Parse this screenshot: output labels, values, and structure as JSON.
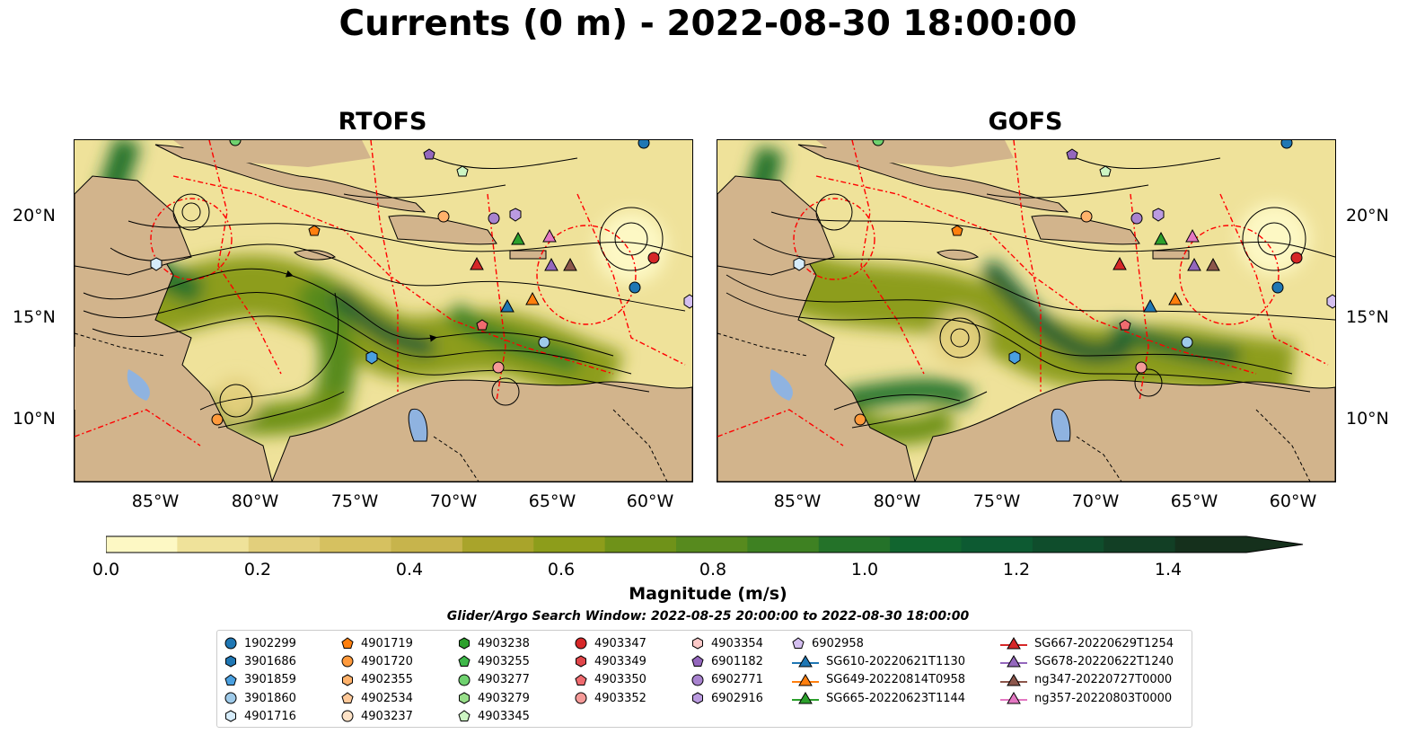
{
  "figure": {
    "title": "Currents (0 m) - 2022-08-30 18:00:00",
    "panels": [
      {
        "title": "RTOFS"
      },
      {
        "title": "GOFS"
      }
    ]
  },
  "axes": {
    "lat_labels": [
      "20°N",
      "15°N",
      "10°N"
    ],
    "lon_labels": [
      "85°W",
      "80°W",
      "75°W",
      "70°W",
      "65°W",
      "60°W"
    ]
  },
  "colorbar": {
    "label": "Magnitude (m/s)",
    "ticks": [
      "0.0",
      "0.2",
      "0.4",
      "0.6",
      "0.8",
      "1.0",
      "1.2",
      "1.4"
    ],
    "colors": [
      "#fdf8c4",
      "#efe29a",
      "#e2cf7c",
      "#d6c160",
      "#c7b44c",
      "#a9a42b",
      "#8d9d1b",
      "#6f9219",
      "#578a1e",
      "#3e8122",
      "#247229",
      "#11652f",
      "#0d5a32",
      "#0f4d2c",
      "#123f25",
      "#15301c"
    ]
  },
  "search_window": "Glider/Argo Search Window: 2022-08-25 20:00:00 to 2022-08-30 18:00:00",
  "legend": {
    "columns": [
      [
        {
          "label": "1902299",
          "marker": "circle",
          "color": "#1f77b4"
        },
        {
          "label": "3901686",
          "marker": "hexagon",
          "color": "#1f77b4"
        },
        {
          "label": "3901859",
          "marker": "pentagon",
          "color": "#4aa0e0"
        },
        {
          "label": "3901860",
          "marker": "circle",
          "color": "#9ecae9"
        },
        {
          "label": "4901716",
          "marker": "hexagon",
          "color": "#d6ecfb"
        }
      ],
      [
        {
          "label": "4901719",
          "marker": "pentagon",
          "color": "#ff7f0e"
        },
        {
          "label": "4901720",
          "marker": "circle",
          "color": "#ff9a3c"
        },
        {
          "label": "4902355",
          "marker": "hexagon",
          "color": "#ffb26b"
        },
        {
          "label": "4902534",
          "marker": "pentagon",
          "color": "#ffc999"
        },
        {
          "label": "4903237",
          "marker": "circle",
          "color": "#ffe3c7"
        }
      ],
      [
        {
          "label": "4903238",
          "marker": "hexagon",
          "color": "#2ca02c"
        },
        {
          "label": "4903255",
          "marker": "pentagon",
          "color": "#3fb84a"
        },
        {
          "label": "4903277",
          "marker": "circle",
          "color": "#6fd26f"
        },
        {
          "label": "4903279",
          "marker": "hexagon",
          "color": "#98df8a"
        },
        {
          "label": "4903345",
          "marker": "pentagon",
          "color": "#cdf5c3"
        }
      ],
      [
        {
          "label": "4903347",
          "marker": "circle",
          "color": "#d62728"
        },
        {
          "label": "4903349",
          "marker": "hexagon",
          "color": "#e0464a"
        },
        {
          "label": "4903350",
          "marker": "pentagon",
          "color": "#ef6b6f"
        },
        {
          "label": "4903352",
          "marker": "circle",
          "color": "#f59a98"
        }
      ],
      [
        {
          "label": "4903354",
          "marker": "hexagon",
          "color": "#fcc9c8"
        },
        {
          "label": "6901182",
          "marker": "pentagon",
          "color": "#9467bd"
        },
        {
          "label": "6902771",
          "marker": "circle",
          "color": "#a883cf"
        },
        {
          "label": "6902916",
          "marker": "hexagon",
          "color": "#bb9be0"
        }
      ],
      [
        {
          "label": "6902958",
          "marker": "pentagon",
          "color": "#d4bff0"
        },
        {
          "label": "SG610-20220621T1130",
          "marker": "triangle-line",
          "color": "#1f77b4"
        },
        {
          "label": "SG649-20220814T0958",
          "marker": "triangle-line",
          "color": "#ff7f0e"
        },
        {
          "label": "SG665-20220623T1144",
          "marker": "triangle-line",
          "color": "#2ca02c"
        }
      ],
      [
        {
          "label": "SG667-20220629T1254",
          "marker": "triangle-line",
          "color": "#d62728"
        },
        {
          "label": "SG678-20220622T1240",
          "marker": "triangle-line",
          "color": "#9467bd"
        },
        {
          "label": "ng347-20220727T0000",
          "marker": "triangle-line",
          "color": "#8c564b"
        },
        {
          "label": "ng357-20220803T0000",
          "marker": "triangle-line",
          "color": "#e377c2"
        }
      ]
    ]
  },
  "map_colors": {
    "land": "#d2b48c",
    "lake": "#8fb3e0",
    "eez": "#ff0000",
    "streamline": "#000000"
  }
}
